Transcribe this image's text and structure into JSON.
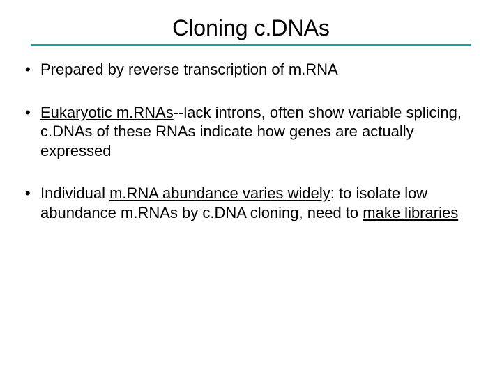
{
  "title": "Cloning c.DNAs",
  "rule_color": "#1aa39a",
  "bullets": [
    {
      "segments": [
        {
          "text": "Prepared by reverse transcription of m.RNA",
          "underline": false
        }
      ]
    },
    {
      "segments": [
        {
          "text": "Eukaryotic m.RNAs",
          "underline": true
        },
        {
          "text": "--lack introns, often show variable splicing, c.DNAs of these RNAs indicate how genes are actually expressed",
          "underline": false
        }
      ]
    },
    {
      "segments": [
        {
          "text": "Individual ",
          "underline": false
        },
        {
          "text": "m.RNA abundance varies widely",
          "underline": true
        },
        {
          "text": ": to isolate low abundance m.RNAs by c.DNA cloning, need to ",
          "underline": false
        },
        {
          "text": "make libraries",
          "underline": true
        }
      ]
    }
  ],
  "font_sizes": {
    "title": 32,
    "body": 22
  },
  "colors": {
    "text": "#000000",
    "background": "#ffffff"
  }
}
